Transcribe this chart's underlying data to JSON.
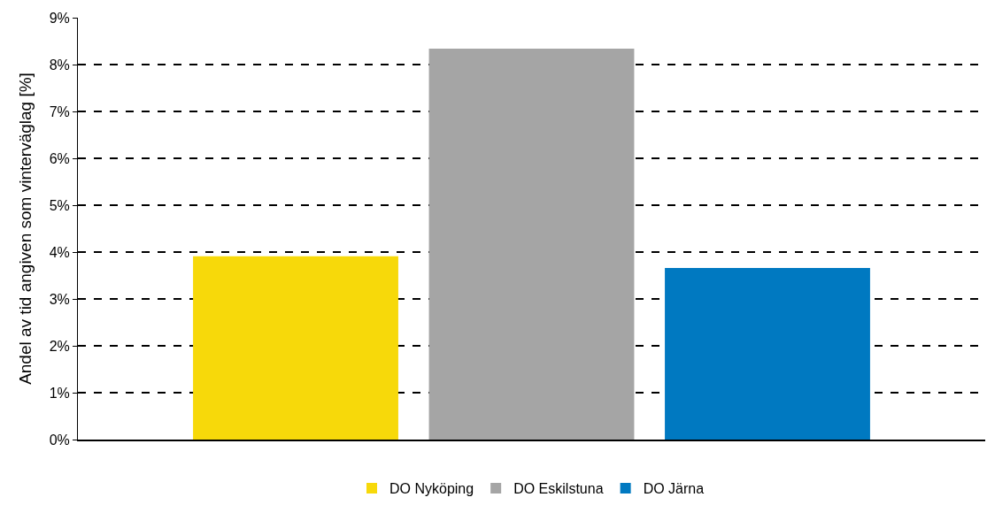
{
  "chart_data": {
    "type": "bar",
    "ylabel": "Andel av tid angiven som vinterväglag [%]",
    "categories": [
      null
    ],
    "series": [
      {
        "name": "DO Nyköping",
        "color": "#f7d90a",
        "values": [
          3.91
        ]
      },
      {
        "name": "DO Eskilstuna",
        "color": "#a5a5a5",
        "values": [
          8.34
        ]
      },
      {
        "name": "DO Järna",
        "color": "#0079c1",
        "values": [
          3.66
        ]
      }
    ],
    "ylim": [
      0,
      9
    ],
    "yticks": [
      {
        "value": 0,
        "label": "0%"
      },
      {
        "value": 1,
        "label": "1%"
      },
      {
        "value": 2,
        "label": "2%"
      },
      {
        "value": 3,
        "label": "3%"
      },
      {
        "value": 4,
        "label": "4%"
      },
      {
        "value": 5,
        "label": "5%"
      },
      {
        "value": 6,
        "label": "6%"
      },
      {
        "value": 7,
        "label": "7%"
      },
      {
        "value": 8,
        "label": "8%"
      },
      {
        "value": 9,
        "label": "9%"
      }
    ],
    "grid": "y",
    "legend": "bottom"
  }
}
